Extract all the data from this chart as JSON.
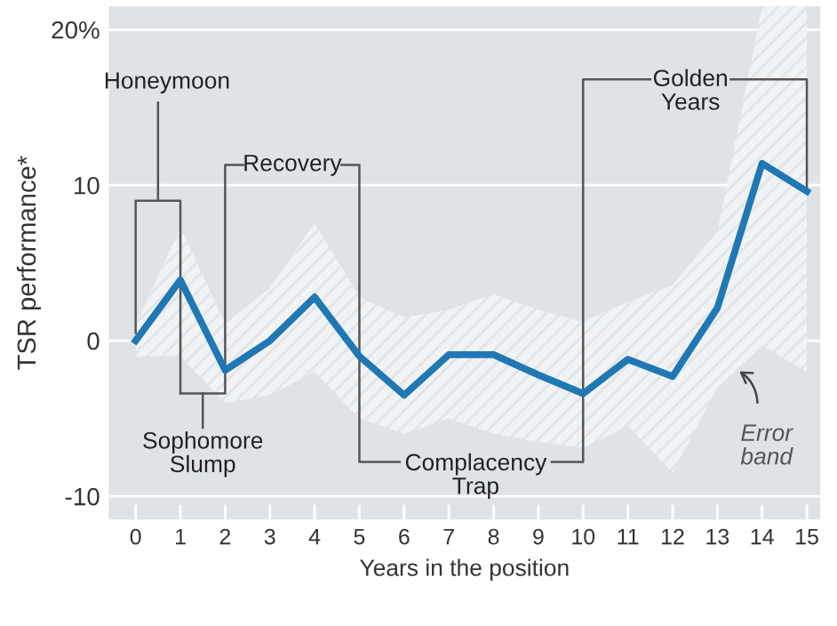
{
  "chart_data": {
    "type": "line",
    "xlabel": "Years in the position",
    "ylabel": "TSR performance*",
    "x": [
      0,
      1,
      2,
      3,
      4,
      5,
      6,
      7,
      8,
      9,
      10,
      11,
      12,
      13,
      14,
      15
    ],
    "series": [
      {
        "color": "#1f78b4",
        "values": [
          0,
          3.9,
          -1.9,
          0,
          2.8,
          -1,
          -3.5,
          -0.9,
          -0.9,
          -2.2,
          -3.4,
          -1.2,
          -2.3,
          2.1,
          11.4,
          9.6
        ],
        "lower": [
          -1,
          -1,
          -4,
          -3.5,
          -2,
          -5,
          -6,
          -5,
          -6,
          -6.5,
          -6.9,
          -5.5,
          -8.5,
          -3,
          -0.3,
          -2
        ],
        "upper": [
          1,
          7.3,
          1.1,
          3.4,
          7.6,
          2.8,
          1.5,
          2,
          3,
          2,
          1.2,
          2.5,
          3.6,
          7,
          21.5,
          21.5
        ]
      }
    ],
    "xlim": [
      -0.6,
      15.3
    ],
    "ylim": [
      -11.5,
      21.5
    ],
    "xticks": [
      0,
      1,
      2,
      3,
      4,
      5,
      6,
      7,
      8,
      9,
      10,
      11,
      12,
      13,
      14,
      15
    ],
    "yticks": [
      -10,
      0,
      10,
      {
        "value": 20,
        "label": "20%"
      }
    ],
    "grid": "y",
    "marker": "none",
    "line_style": "solid",
    "annotations": [
      "Honeymoon",
      {
        "text": "Sophomore\nSlump",
        "x": 2,
        "y": -1.9
      },
      {
        "text": "Recovery",
        "x": 5,
        "y": -1
      },
      {
        "text": "Complacency\nTrap",
        "x": 5,
        "y": -1
      },
      {
        "text": "Golden\nYears",
        "x": 15,
        "y": 9.6
      },
      "Error\nband"
    ]
  }
}
